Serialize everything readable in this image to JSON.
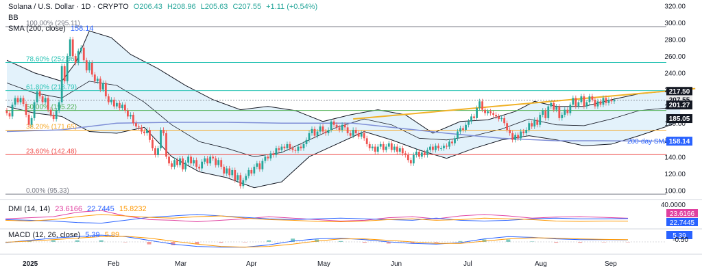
{
  "header": {
    "symbol": "Solana / U.S. Dollar · 1D · CRYPTO",
    "open": "O206.43",
    "high": "H208.96",
    "low": "L205.63",
    "close": "C207.55",
    "change": "+1.11 (+0.54%)",
    "bb_label": "BB",
    "sma_label": "SMA (200, close)",
    "sma_value": "158.14",
    "dmi_label": "DMI (14, 14)",
    "dmi_values": [
      "23.6166",
      "22.7445",
      "15.8232"
    ],
    "macd_label": "MACD (12, 26, close)",
    "macd_values": [
      "5.39",
      "5.89"
    ]
  },
  "colors": {
    "up": "#26a69a",
    "down": "#ef5350",
    "fib": "#2ec4b6",
    "fib_green": "#4caf50",
    "fib_orange": "#f5a623",
    "fib_red": "#ef5350",
    "sma": "#7e8ed6",
    "bb_fill": "#e3f2fb",
    "trend": "#f0b127",
    "dark": "#131722",
    "plus_di": "#e040a0",
    "minus_di": "#2962ff",
    "adx": "#ff9800"
  },
  "chart_data": {
    "type": "candlestick",
    "title": "Solana / U.S. Dollar · 1D · CRYPTO",
    "ylim": [
      93,
      322
    ],
    "y_ticks": [
      100,
      120,
      140,
      160,
      180,
      200,
      220,
      240,
      260,
      280,
      300,
      320
    ],
    "x_ticks": [
      "2025",
      "Feb",
      "Mar",
      "Apr",
      "May",
      "Jun",
      "Jul",
      "Aug",
      "Sep"
    ],
    "fib_levels": [
      {
        "label": "100.00% (295.11)",
        "value": 295.11,
        "color": "#787b86"
      },
      {
        "label": "78.60% (252.36)",
        "value": 252.36,
        "color": "#2ec4b6"
      },
      {
        "label": "61.80% (218.79)",
        "value": 218.79,
        "color": "#2ec4b6"
      },
      {
        "label": "50.00% (195.22)",
        "value": 195.22,
        "color": "#4caf50"
      },
      {
        "label": "38.20% (171.65)",
        "value": 171.65,
        "color": "#f5a623"
      },
      {
        "label": "23.60% (142.48)",
        "value": 142.48,
        "color": "#ef5350"
      },
      {
        "label": "0.00% (95.33)",
        "value": 95.33,
        "color": "#787b86"
      }
    ],
    "price_badges": [
      {
        "label": "217.50",
        "value": 217.5,
        "bg": "#131722"
      },
      {
        "label": "207.55",
        "value": 207.55,
        "bg": "#e8e8e8"
      },
      {
        "label": "201.27",
        "value": 201.27,
        "bg": "#131722"
      },
      {
        "label": "185.05",
        "value": 185.05,
        "bg": "#131722"
      },
      {
        "label": "158.14",
        "value": 158.14,
        "bg": "#2962ff"
      }
    ],
    "sma_label": "200-day SMA",
    "trendline": [
      [
        126,
        185
      ],
      [
        245,
        218
      ]
    ],
    "sma": [
      [
        0,
        170
      ],
      [
        20,
        172
      ],
      [
        40,
        180
      ],
      [
        60,
        181
      ],
      [
        80,
        181
      ],
      [
        100,
        180
      ],
      [
        126,
        180
      ],
      [
        140,
        175
      ],
      [
        160,
        168
      ],
      [
        180,
        162
      ],
      [
        200,
        159
      ],
      [
        217,
        159
      ],
      [
        245,
        158.5
      ]
    ],
    "bb_upper": [
      [
        0,
        255
      ],
      [
        10,
        240
      ],
      [
        20,
        230
      ],
      [
        25,
        252
      ],
      [
        30,
        290
      ],
      [
        38,
        282
      ],
      [
        45,
        262
      ],
      [
        55,
        245
      ],
      [
        65,
        225
      ],
      [
        75,
        208
      ],
      [
        85,
        196
      ],
      [
        95,
        200
      ],
      [
        105,
        195
      ],
      [
        115,
        182
      ],
      [
        125,
        190
      ],
      [
        135,
        196
      ],
      [
        145,
        190
      ],
      [
        155,
        168
      ],
      [
        165,
        182
      ],
      [
        175,
        184
      ],
      [
        185,
        194
      ],
      [
        192,
        206
      ],
      [
        200,
        200
      ],
      [
        210,
        200
      ],
      [
        220,
        208
      ],
      [
        230,
        215
      ],
      [
        240,
        218
      ],
      [
        245,
        218
      ]
    ],
    "bb_lower": [
      [
        0,
        200
      ],
      [
        10,
        192
      ],
      [
        20,
        188
      ],
      [
        30,
        170
      ],
      [
        40,
        168
      ],
      [
        50,
        175
      ],
      [
        60,
        140
      ],
      [
        70,
        122
      ],
      [
        80,
        115
      ],
      [
        90,
        103
      ],
      [
        100,
        110
      ],
      [
        110,
        140
      ],
      [
        120,
        155
      ],
      [
        130,
        170
      ],
      [
        140,
        160
      ],
      [
        150,
        148
      ],
      [
        160,
        138
      ],
      [
        170,
        150
      ],
      [
        180,
        160
      ],
      [
        190,
        165
      ],
      [
        200,
        160
      ],
      [
        210,
        153
      ],
      [
        220,
        155
      ],
      [
        230,
        165
      ],
      [
        240,
        176
      ],
      [
        245,
        183
      ]
    ],
    "bb_mid": [
      [
        0,
        228
      ],
      [
        10,
        216
      ],
      [
        20,
        210
      ],
      [
        30,
        230
      ],
      [
        40,
        225
      ],
      [
        50,
        205
      ],
      [
        60,
        178
      ],
      [
        70,
        158
      ],
      [
        80,
        150
      ],
      [
        90,
        140
      ],
      [
        100,
        145
      ],
      [
        110,
        160
      ],
      [
        120,
        175
      ],
      [
        130,
        185
      ],
      [
        140,
        178
      ],
      [
        150,
        162
      ],
      [
        160,
        160
      ],
      [
        170,
        165
      ],
      [
        180,
        173
      ],
      [
        190,
        185
      ],
      [
        200,
        178
      ],
      [
        210,
        177
      ],
      [
        220,
        185
      ],
      [
        230,
        195
      ],
      [
        240,
        198
      ],
      [
        245,
        200
      ]
    ],
    "candles": [
      [
        195,
        192
      ],
      [
        192,
        188
      ],
      [
        188,
        202
      ],
      [
        202,
        210
      ],
      [
        210,
        205
      ],
      [
        205,
        210
      ],
      [
        210,
        203
      ],
      [
        203,
        190
      ],
      [
        190,
        178
      ],
      [
        178,
        186
      ],
      [
        186,
        205
      ],
      [
        205,
        218
      ],
      [
        218,
        212
      ],
      [
        212,
        205
      ],
      [
        205,
        210
      ],
      [
        210,
        196
      ],
      [
        196,
        190
      ],
      [
        190,
        185
      ],
      [
        185,
        195
      ],
      [
        195,
        205
      ],
      [
        205,
        248
      ],
      [
        248,
        230
      ],
      [
        230,
        260
      ],
      [
        260,
        280
      ],
      [
        280,
        260
      ],
      [
        260,
        252
      ],
      [
        252,
        266
      ],
      [
        266,
        270
      ],
      [
        270,
        255
      ],
      [
        255,
        243
      ],
      [
        243,
        252
      ],
      [
        252,
        238
      ],
      [
        238,
        230
      ],
      [
        230,
        233
      ],
      [
        233,
        220
      ],
      [
        220,
        228
      ],
      [
        228,
        212
      ],
      [
        212,
        205
      ],
      [
        205,
        208
      ],
      [
        208,
        200
      ],
      [
        200,
        204
      ],
      [
        204,
        198
      ],
      [
        198,
        202
      ],
      [
        202,
        195
      ],
      [
        195,
        188
      ],
      [
        188,
        190
      ],
      [
        190,
        180
      ],
      [
        180,
        176
      ],
      [
        176,
        175
      ],
      [
        175,
        170
      ],
      [
        170,
        168
      ],
      [
        168,
        172
      ],
      [
        172,
        160
      ],
      [
        160,
        150
      ],
      [
        150,
        142
      ],
      [
        142,
        150
      ],
      [
        150,
        172
      ],
      [
        172,
        168
      ],
      [
        168,
        140
      ],
      [
        140,
        132
      ],
      [
        132,
        128
      ],
      [
        128,
        136
      ],
      [
        136,
        130
      ],
      [
        130,
        138
      ],
      [
        138,
        125
      ],
      [
        125,
        133
      ],
      [
        133,
        140
      ],
      [
        140,
        132
      ],
      [
        132,
        136
      ],
      [
        136,
        128
      ],
      [
        128,
        126
      ],
      [
        126,
        134
      ],
      [
        134,
        138
      ],
      [
        138,
        132
      ],
      [
        132,
        140
      ],
      [
        140,
        138
      ],
      [
        138,
        130
      ],
      [
        130,
        136
      ],
      [
        136,
        128
      ],
      [
        128,
        120
      ],
      [
        120,
        126
      ],
      [
        126,
        118
      ],
      [
        118,
        124
      ],
      [
        124,
        112
      ],
      [
        112,
        118
      ],
      [
        118,
        105
      ],
      [
        105,
        112
      ],
      [
        112,
        117
      ],
      [
        117,
        124
      ],
      [
        124,
        120
      ],
      [
        120,
        128
      ],
      [
        128,
        132
      ],
      [
        132,
        125
      ],
      [
        125,
        135
      ],
      [
        135,
        140
      ],
      [
        140,
        138
      ],
      [
        138,
        144
      ],
      [
        144,
        142
      ],
      [
        142,
        150
      ],
      [
        150,
        148
      ],
      [
        148,
        152
      ],
      [
        152,
        150
      ],
      [
        150,
        155
      ],
      [
        155,
        150
      ],
      [
        150,
        148
      ],
      [
        148,
        147
      ],
      [
        147,
        152
      ],
      [
        152,
        150
      ],
      [
        150,
        155
      ],
      [
        155,
        160
      ],
      [
        160,
        168
      ],
      [
        168,
        173
      ],
      [
        173,
        165
      ],
      [
        165,
        170
      ],
      [
        170,
        176
      ],
      [
        176,
        170
      ],
      [
        170,
        168
      ],
      [
        168,
        172
      ],
      [
        172,
        182
      ],
      [
        182,
        178
      ],
      [
        178,
        175
      ],
      [
        175,
        172
      ],
      [
        172,
        178
      ],
      [
        178,
        175
      ],
      [
        175,
        168
      ],
      [
        168,
        165
      ],
      [
        165,
        172
      ],
      [
        172,
        168
      ],
      [
        168,
        164
      ],
      [
        164,
        168
      ],
      [
        168,
        162
      ],
      [
        162,
        155
      ],
      [
        155,
        150
      ],
      [
        150,
        152
      ],
      [
        152,
        146
      ],
      [
        146,
        152
      ],
      [
        152,
        155
      ],
      [
        155,
        148
      ],
      [
        148,
        152
      ],
      [
        152,
        156
      ],
      [
        156,
        148
      ],
      [
        148,
        152
      ],
      [
        152,
        146
      ],
      [
        146,
        150
      ],
      [
        150,
        144
      ],
      [
        144,
        142
      ],
      [
        142,
        136
      ],
      [
        136,
        132
      ],
      [
        132,
        142
      ],
      [
        142,
        146
      ],
      [
        146,
        140
      ],
      [
        140,
        145
      ],
      [
        145,
        142
      ],
      [
        142,
        148
      ],
      [
        148,
        152
      ],
      [
        152,
        148
      ],
      [
        148,
        153
      ],
      [
        153,
        150
      ],
      [
        150,
        150
      ],
      [
        150,
        153
      ],
      [
        153,
        152
      ],
      [
        152,
        158
      ],
      [
        158,
        156
      ],
      [
        156,
        162
      ],
      [
        162,
        170
      ],
      [
        170,
        174
      ],
      [
        174,
        172
      ],
      [
        172,
        178
      ],
      [
        178,
        182
      ],
      [
        182,
        188
      ],
      [
        188,
        186
      ],
      [
        186,
        198
      ],
      [
        198,
        206
      ],
      [
        206,
        196
      ],
      [
        196,
        192
      ],
      [
        192,
        194
      ],
      [
        194,
        192
      ],
      [
        192,
        190
      ],
      [
        190,
        188
      ],
      [
        188,
        185
      ],
      [
        185,
        186
      ],
      [
        186,
        180
      ],
      [
        180,
        172
      ],
      [
        172,
        168
      ],
      [
        168,
        160
      ],
      [
        160,
        166
      ],
      [
        166,
        162
      ],
      [
        162,
        170
      ],
      [
        170,
        168
      ],
      [
        168,
        172
      ],
      [
        172,
        180
      ],
      [
        180,
        176
      ],
      [
        176,
        184
      ],
      [
        184,
        178
      ],
      [
        178,
        190
      ],
      [
        190,
        195
      ],
      [
        195,
        186
      ],
      [
        186,
        200
      ],
      [
        200,
        204
      ],
      [
        204,
        196
      ],
      [
        196,
        200
      ],
      [
        200,
        186
      ],
      [
        186,
        190
      ],
      [
        190,
        196
      ],
      [
        196,
        192
      ],
      [
        192,
        202
      ],
      [
        202,
        210
      ],
      [
        210,
        200
      ],
      [
        200,
        205
      ],
      [
        205,
        212
      ],
      [
        212,
        200
      ],
      [
        200,
        205
      ],
      [
        205,
        212
      ],
      [
        212,
        208
      ],
      [
        208,
        200
      ],
      [
        200,
        206
      ],
      [
        206,
        202
      ],
      [
        202,
        210
      ],
      [
        210,
        204
      ],
      [
        204,
        208
      ],
      [
        208,
        206
      ],
      [
        206,
        207.55
      ]
    ],
    "dmi": {
      "labels": [
        "23.6166",
        "22.7445",
        "15.8232"
      ],
      "ylim": [
        0,
        60
      ],
      "badge_40": "40.0000",
      "plus_di": [
        22,
        25,
        28,
        40,
        45,
        30,
        20,
        18,
        14,
        18,
        22,
        28,
        24,
        20,
        16,
        18,
        25,
        28,
        22,
        30,
        34,
        30,
        24,
        27,
        28,
        26,
        23.6
      ],
      "minus_di": [
        20,
        18,
        16,
        12,
        10,
        18,
        26,
        30,
        34,
        30,
        26,
        22,
        20,
        22,
        24,
        22,
        20,
        18,
        24,
        18,
        16,
        18,
        22,
        24,
        22,
        22,
        22.7
      ],
      "adx": [
        18,
        16,
        20,
        28,
        34,
        30,
        26,
        24,
        28,
        30,
        24,
        20,
        18,
        15,
        14,
        16,
        20,
        22,
        18,
        20,
        24,
        22,
        20,
        16,
        15,
        16,
        15.8
      ]
    },
    "macd": {
      "labels": [
        "5.39",
        "5.89"
      ],
      "neg_label": "-0.50",
      "macd": [
        -2,
        4,
        10,
        14,
        18,
        14,
        4,
        -6,
        -12,
        -14,
        -14,
        -8,
        2,
        8,
        10,
        6,
        0,
        -4,
        -6,
        -2,
        8,
        14,
        12,
        8,
        6,
        6,
        5.4
      ],
      "signal": [
        -1,
        2,
        6,
        10,
        14,
        15,
        10,
        2,
        -6,
        -12,
        -14,
        -12,
        -6,
        2,
        8,
        8,
        4,
        0,
        -4,
        -4,
        2,
        8,
        11,
        10,
        8,
        6.5,
        5.9
      ]
    }
  }
}
